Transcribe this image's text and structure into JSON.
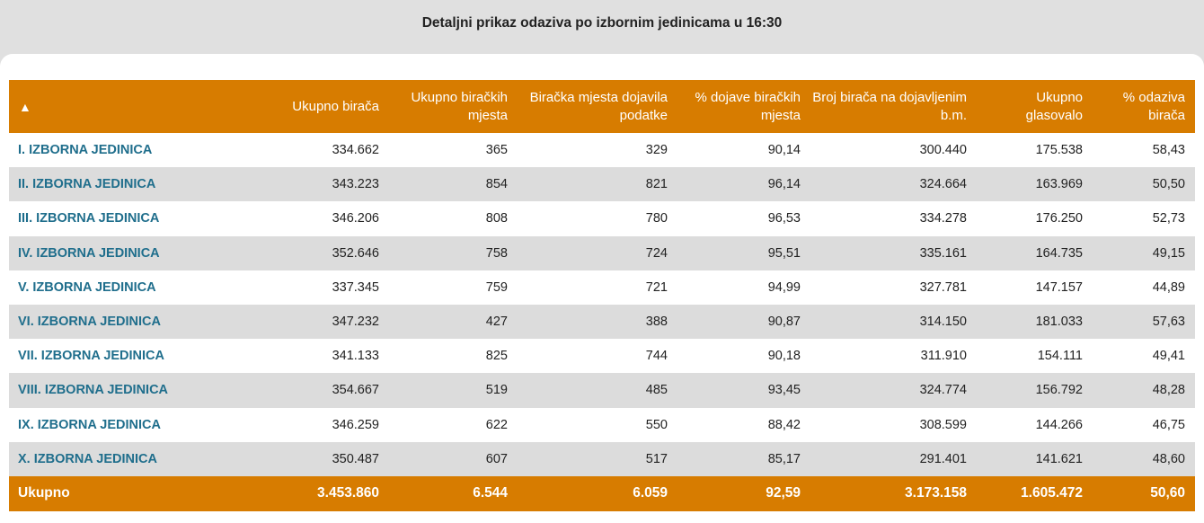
{
  "title": "Detaljni prikaz odaziva po izbornim jedinicama u 16:30",
  "table": {
    "sort_icon": "▲",
    "headers": [
      "Ukupno birača",
      "Ukupno biračkih mjesta",
      "Biračka mjesta dojavila podatke",
      "% dojave biračkih mjesta",
      "Broj birača na dojavljenim b.m.",
      "Ukupno glasovalo",
      "% odaziva birača"
    ],
    "rows": [
      {
        "name": "I. IZBORNA JEDINICA",
        "values": [
          "334.662",
          "365",
          "329",
          "90,14",
          "300.440",
          "175.538",
          "58,43"
        ]
      },
      {
        "name": "II. IZBORNA JEDINICA",
        "values": [
          "343.223",
          "854",
          "821",
          "96,14",
          "324.664",
          "163.969",
          "50,50"
        ]
      },
      {
        "name": "III. IZBORNA JEDINICA",
        "values": [
          "346.206",
          "808",
          "780",
          "96,53",
          "334.278",
          "176.250",
          "52,73"
        ]
      },
      {
        "name": "IV. IZBORNA JEDINICA",
        "values": [
          "352.646",
          "758",
          "724",
          "95,51",
          "335.161",
          "164.735",
          "49,15"
        ]
      },
      {
        "name": "V. IZBORNA JEDINICA",
        "values": [
          "337.345",
          "759",
          "721",
          "94,99",
          "327.781",
          "147.157",
          "44,89"
        ]
      },
      {
        "name": "VI. IZBORNA JEDINICA",
        "values": [
          "347.232",
          "427",
          "388",
          "90,87",
          "314.150",
          "181.033",
          "57,63"
        ]
      },
      {
        "name": "VII. IZBORNA JEDINICA",
        "values": [
          "341.133",
          "825",
          "744",
          "90,18",
          "311.910",
          "154.111",
          "49,41"
        ]
      },
      {
        "name": "VIII. IZBORNA JEDINICA",
        "values": [
          "354.667",
          "519",
          "485",
          "93,45",
          "324.774",
          "156.792",
          "48,28"
        ]
      },
      {
        "name": "IX. IZBORNA JEDINICA",
        "values": [
          "346.259",
          "622",
          "550",
          "88,42",
          "308.599",
          "144.266",
          "46,75"
        ]
      },
      {
        "name": "X. IZBORNA JEDINICA",
        "values": [
          "350.487",
          "607",
          "517",
          "85,17",
          "291.401",
          "141.621",
          "48,60"
        ]
      }
    ],
    "total": {
      "name": "Ukupno",
      "values": [
        "3.453.860",
        "6.544",
        "6.059",
        "92,59",
        "3.173.158",
        "1.605.472",
        "50,60"
      ]
    }
  },
  "colors": {
    "header_bg": "#d77c00",
    "link": "#1f6e8c",
    "stripe": "#dcdcdc"
  }
}
